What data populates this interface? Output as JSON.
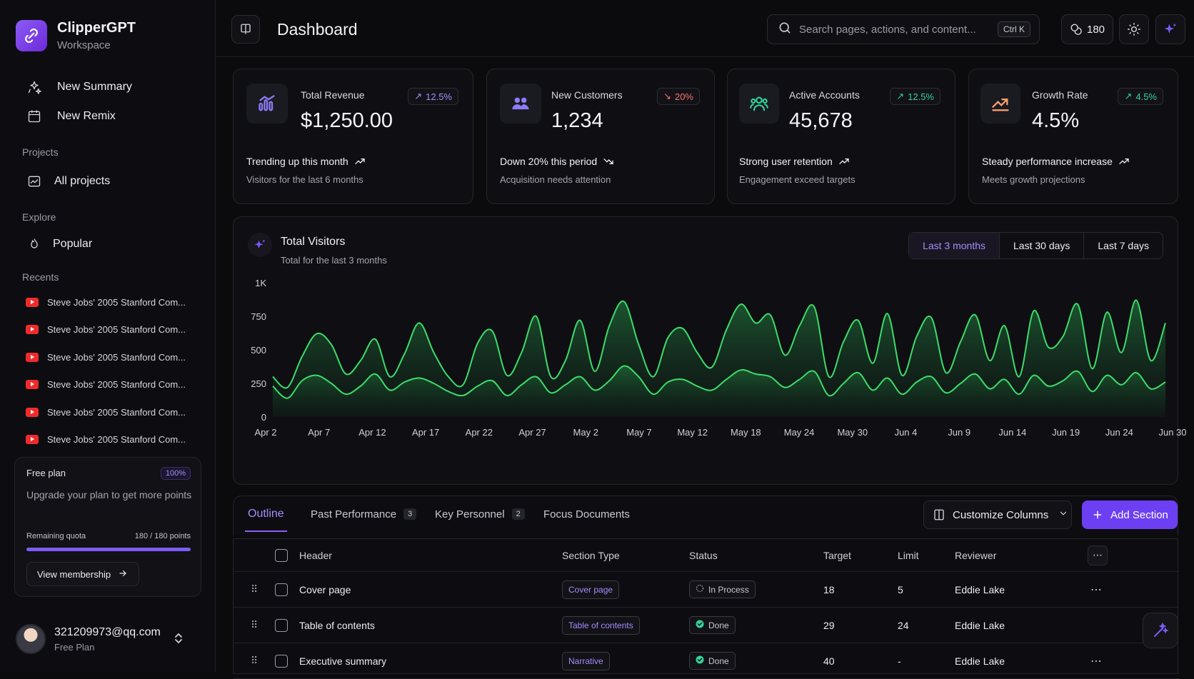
{
  "brand": {
    "name": "ClipperGPT",
    "sub": "Workspace"
  },
  "nav": {
    "new_summary": "New Summary",
    "new_remix": "New Remix",
    "projects_label": "Projects",
    "all_projects": "All projects",
    "explore_label": "Explore",
    "popular": "Popular",
    "recents_label": "Recents",
    "recents": [
      "Steve Jobs' 2005 Stanford Com...",
      "Steve Jobs' 2005 Stanford Com...",
      "Steve Jobs' 2005 Stanford Com...",
      "Steve Jobs' 2005 Stanford Com...",
      "Steve Jobs' 2005 Stanford Com...",
      "Steve Jobs' 2005 Stanford Com..."
    ]
  },
  "plan": {
    "title": "Free plan",
    "badge": "100%",
    "desc": "Upgrade your plan to get more points",
    "quota_label": "Remaining quota",
    "quota_value": "180 / 180 points",
    "quota_fraction": 1.0,
    "button": "View membership"
  },
  "user": {
    "email": "321209973@qq.com",
    "plan": "Free Plan"
  },
  "header": {
    "title": "Dashboard",
    "search_placeholder": "Search pages, actions, and content...",
    "shortcut": "Ctrl K",
    "credits": "180"
  },
  "cards": [
    {
      "label": "Total Revenue",
      "value": "$1,250.00",
      "badge": "12.5%",
      "trend": "up",
      "line1": "Trending up this month",
      "line2": "Visitors for the last 6 months",
      "icon": "bar-chart-icon",
      "color": "#8b7cf6"
    },
    {
      "label": "New Customers",
      "value": "1,234",
      "badge": "20%",
      "trend": "down",
      "line1": "Down 20% this period",
      "line2": "Acquisition needs attention",
      "icon": "users-icon",
      "color": "#8b7cf6"
    },
    {
      "label": "Active Accounts",
      "value": "45,678",
      "badge": "12.5%",
      "trend": "up",
      "line1": "Strong user retention",
      "line2": "Engagement exceed targets",
      "icon": "user-group-icon",
      "color": "#34d399"
    },
    {
      "label": "Growth Rate",
      "value": "4.5%",
      "badge": "4.5%",
      "trend": "up",
      "line1": "Steady performance increase",
      "line2": "Meets growth projections",
      "icon": "trend-up-icon",
      "color": "#f59e6b"
    }
  ],
  "colors": {
    "accent": "#8b5cf6",
    "up": "#a78bfa",
    "down": "#f87171",
    "green_badge": "#34d399",
    "series": "#3ddc6a"
  },
  "visitors": {
    "title": "Total Visitors",
    "subtitle": "Total for the last 3 months",
    "ranges": [
      "Last 3 months",
      "Last 30 days",
      "Last 7 days"
    ],
    "active_range": 0
  },
  "chart_data": {
    "type": "area",
    "title": "Total Visitors",
    "ylim": [
      0,
      1000
    ],
    "yticks": [
      0,
      250,
      500,
      750,
      1000
    ],
    "ytick_labels": [
      "0",
      "250",
      "500",
      "750",
      "1K"
    ],
    "xtick_labels": [
      "Apr 2",
      "Apr 7",
      "Apr 12",
      "Apr 17",
      "Apr 22",
      "Apr 27",
      "May 2",
      "May 7",
      "May 12",
      "May 18",
      "May 24",
      "May 30",
      "Jun 4",
      "Jun 9",
      "Jun 14",
      "Jun 19",
      "Jun 24",
      "Jun 30"
    ],
    "series": [
      {
        "values": [
          300,
          220,
          450,
          620,
          540,
          320,
          420,
          580,
          300,
          470,
          700,
          480,
          300,
          240,
          550,
          640,
          310,
          480,
          750,
          300,
          420,
          720,
          340,
          680,
          860,
          540,
          300,
          590,
          660,
          480,
          370,
          650,
          840,
          700,
          760,
          460,
          680,
          820,
          300,
          560,
          720,
          400,
          770,
          310,
          600,
          740,
          330,
          560,
          760,
          420,
          680,
          300,
          790,
          520,
          600,
          840,
          360,
          780,
          480,
          870,
          420,
          700
        ]
      },
      {
        "values": [
          230,
          140,
          270,
          310,
          250,
          170,
          230,
          320,
          200,
          260,
          290,
          250,
          190,
          160,
          230,
          270,
          160,
          240,
          300,
          180,
          240,
          300,
          200,
          270,
          380,
          300,
          170,
          260,
          280,
          230,
          200,
          280,
          350,
          320,
          300,
          220,
          280,
          340,
          160,
          250,
          330,
          200,
          290,
          170,
          260,
          300,
          180,
          250,
          320,
          210,
          280,
          170,
          310,
          230,
          270,
          340,
          190,
          310,
          240,
          330,
          210,
          260
        ]
      }
    ]
  },
  "table_tabs": [
    {
      "label": "Outline",
      "count": ""
    },
    {
      "label": "Past Performance",
      "count": "3"
    },
    {
      "label": "Key Personnel",
      "count": "2"
    },
    {
      "label": "Focus Documents",
      "count": ""
    }
  ],
  "table_actions": {
    "customize": "Customize Columns",
    "add": "Add Section"
  },
  "table": {
    "columns": [
      "Header",
      "Section Type",
      "Status",
      "Target",
      "Limit",
      "Reviewer"
    ],
    "rows": [
      {
        "header": "Cover page",
        "type": "Cover page",
        "status": "In Process",
        "target": "18",
        "limit": "5",
        "reviewer": "Eddie Lake"
      },
      {
        "header": "Table of contents",
        "type": "Table of contents",
        "status": "Done",
        "target": "29",
        "limit": "24",
        "reviewer": "Eddie Lake"
      },
      {
        "header": "Executive summary",
        "type": "Narrative",
        "status": "Done",
        "target": "40",
        "limit": "-",
        "reviewer": "Eddie Lake"
      }
    ]
  }
}
